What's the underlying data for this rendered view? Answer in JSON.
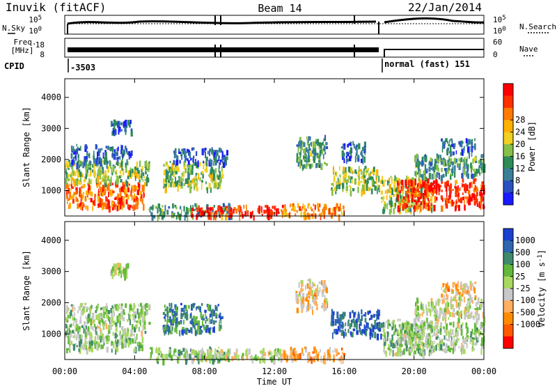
{
  "header": {
    "site": "Inuvik (fitACF)",
    "beam": "Beam 14",
    "date": "22/Jan/2014"
  },
  "status_panel": {
    "nsky_label": "N.Sky",
    "nsearch_label": "N.Search",
    "noise_ticks": [
      "10^5",
      "10^0"
    ],
    "freq_label": "Freq.",
    "freq_unit": "[MHz]",
    "freq_ticks": [
      "18",
      "8"
    ],
    "nave_label": "Nave",
    "nave_ticks": [
      "60",
      "0"
    ],
    "cpid_label": "CPID",
    "cpid_segments": [
      {
        "label": "-3503",
        "start_hour": 0.0,
        "end_hour": 18.1
      },
      {
        "label": "normal (fast) 151",
        "start_hour": 18.1,
        "end_hour": 24.0
      }
    ]
  },
  "chart_data": [
    {
      "type": "heatmap",
      "title": "",
      "xlabel": "Time UT",
      "ylabel": "Slant Range [km]",
      "x_tick_labels": [
        "00:00",
        "04:00",
        "08:00",
        "12:00",
        "16:00",
        "20:00",
        "00:00"
      ],
      "x_ticks_hours": [
        0,
        4,
        8,
        12,
        16,
        20,
        24
      ],
      "xlim_hours": [
        0,
        24
      ],
      "y_ticks": [
        1000,
        2000,
        3000,
        4000
      ],
      "ylim": [
        180,
        4600
      ],
      "colorbar": {
        "label": "Power [dB]",
        "ticks": [
          "4",
          "8",
          "12",
          "16",
          "20",
          "24",
          "28"
        ],
        "colors": [
          "#1a1aff",
          "#2a50c0",
          "#3a7f9a",
          "#2e8b57",
          "#86c04a",
          "#f0d020",
          "#ffb000",
          "#ff7a00",
          "#ff3000",
          "#ff0000"
        ]
      },
      "regions": [
        {
          "t0": 0.0,
          "t1": 4.6,
          "r0": 500,
          "r1": 1300,
          "power_db": 26
        },
        {
          "t0": 0.0,
          "t1": 4.8,
          "r0": 1300,
          "r1": 2000,
          "power_db": 16
        },
        {
          "t0": 0.3,
          "t1": 3.8,
          "r0": 1900,
          "r1": 2500,
          "power_db": 8
        },
        {
          "t0": 2.6,
          "t1": 3.8,
          "r0": 2900,
          "r1": 3300,
          "power_db": 8
        },
        {
          "t0": 4.8,
          "t1": 9.5,
          "r0": 200,
          "r1": 600,
          "power_db": 12
        },
        {
          "t0": 5.6,
          "t1": 9.0,
          "r0": 1100,
          "r1": 2000,
          "power_db": 16
        },
        {
          "t0": 6.2,
          "t1": 9.3,
          "r0": 1900,
          "r1": 2400,
          "power_db": 8
        },
        {
          "t0": 7.2,
          "t1": 12.5,
          "r0": 200,
          "r1": 550,
          "power_db": 28
        },
        {
          "t0": 12.4,
          "t1": 16.0,
          "r0": 200,
          "r1": 600,
          "power_db": 24
        },
        {
          "t0": 13.2,
          "t1": 15.0,
          "r0": 1800,
          "r1": 2800,
          "power_db": 12
        },
        {
          "t0": 15.2,
          "t1": 18.1,
          "r0": 1000,
          "r1": 1800,
          "power_db": 16
        },
        {
          "t0": 15.8,
          "t1": 17.2,
          "r0": 2000,
          "r1": 2600,
          "power_db": 8
        },
        {
          "t0": 18.1,
          "t1": 21.0,
          "r0": 400,
          "r1": 1500,
          "power_db": 16
        },
        {
          "t0": 19.0,
          "t1": 24.0,
          "r0": 500,
          "r1": 1400,
          "power_db": 28
        },
        {
          "t0": 20.0,
          "t1": 24.0,
          "r0": 1500,
          "r1": 2200,
          "power_db": 12
        },
        {
          "t0": 21.5,
          "t1": 23.5,
          "r0": 2200,
          "r1": 2700,
          "power_db": 8
        }
      ]
    },
    {
      "type": "heatmap",
      "title": "",
      "xlabel": "Time UT",
      "ylabel": "Slant Range [km]",
      "x_tick_labels": [
        "00:00",
        "04:00",
        "08:00",
        "12:00",
        "16:00",
        "20:00",
        "00:00"
      ],
      "x_ticks_hours": [
        0,
        4,
        8,
        12,
        16,
        20,
        24
      ],
      "xlim_hours": [
        0,
        24
      ],
      "y_ticks": [
        1000,
        2000,
        3000,
        4000
      ],
      "ylim": [
        180,
        4600
      ],
      "colorbar": {
        "label": "Velocity [m s^-1]",
        "ticks": [
          "1000",
          "500",
          "100",
          "25",
          "-25",
          "-100",
          "-500",
          "-1000"
        ],
        "colors": [
          "#1a40d0",
          "#2e66b0",
          "#3f8a6a",
          "#62b83a",
          "#a8d860",
          "#c8c8c8",
          "#ffb060",
          "#ff8c00",
          "#ff5a00",
          "#ff0000"
        ]
      },
      "regions": [
        {
          "t0": 0.0,
          "t1": 4.6,
          "r0": 500,
          "r1": 1300,
          "velocity": 150
        },
        {
          "t0": 0.0,
          "t1": 4.8,
          "r0": 1300,
          "r1": 2000,
          "velocity": 150
        },
        {
          "t0": 2.6,
          "t1": 3.6,
          "r0": 2900,
          "r1": 3300,
          "velocity": 0
        },
        {
          "t0": 4.8,
          "t1": 9.5,
          "r0": 200,
          "r1": 600,
          "velocity": 300
        },
        {
          "t0": 5.6,
          "t1": 9.0,
          "r0": 1100,
          "r1": 2000,
          "velocity": 600
        },
        {
          "t0": 7.2,
          "t1": 12.5,
          "r0": 200,
          "r1": 550,
          "velocity": 50
        },
        {
          "t0": 12.4,
          "t1": 16.0,
          "r0": 200,
          "r1": 600,
          "velocity": -400
        },
        {
          "t0": 13.2,
          "t1": 15.0,
          "r0": 1800,
          "r1": 2800,
          "velocity": -300
        },
        {
          "t0": 15.2,
          "t1": 18.1,
          "r0": 1000,
          "r1": 1800,
          "velocity": 800
        },
        {
          "t0": 18.1,
          "t1": 21.0,
          "r0": 400,
          "r1": 1500,
          "velocity": 150
        },
        {
          "t0": 19.0,
          "t1": 24.0,
          "r0": 500,
          "r1": 1400,
          "velocity": 150
        },
        {
          "t0": 20.0,
          "t1": 24.0,
          "r0": 1500,
          "r1": 2200,
          "velocity": 0
        },
        {
          "t0": 21.5,
          "t1": 23.5,
          "r0": 2200,
          "r1": 2700,
          "velocity": -300
        }
      ]
    }
  ]
}
